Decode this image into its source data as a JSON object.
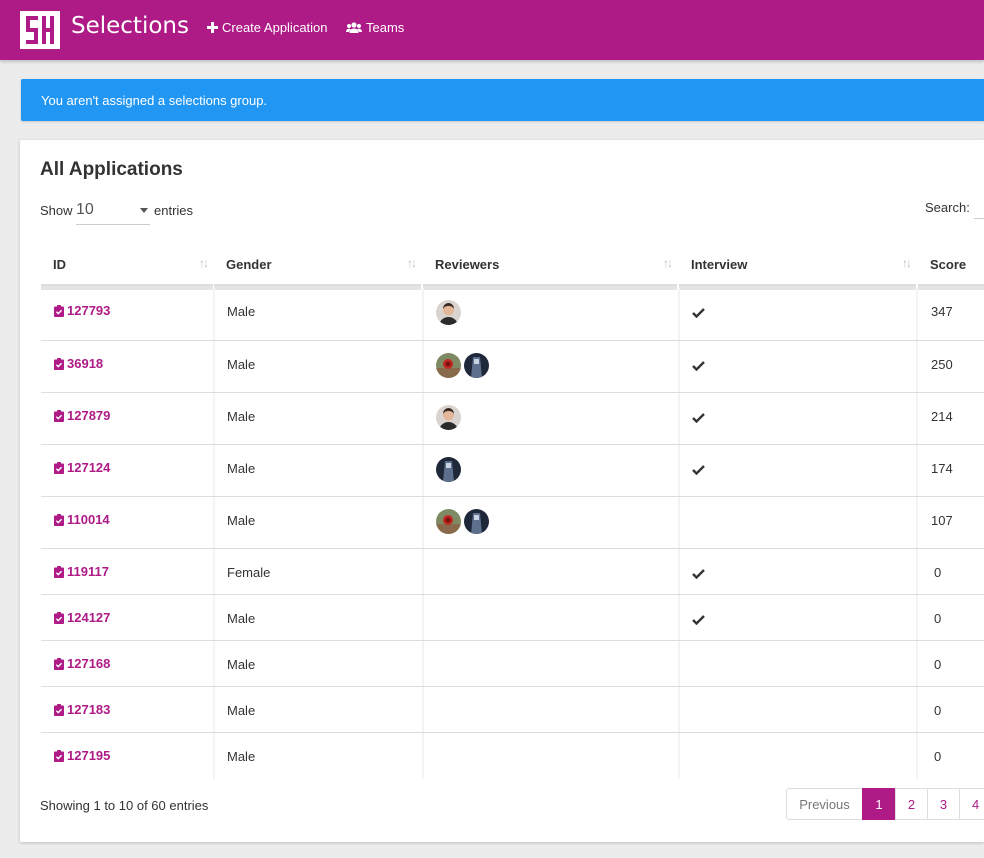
{
  "navbar": {
    "brand": "Selections",
    "links": [
      {
        "label": "Create Application",
        "icon": "plus-icon"
      },
      {
        "label": "Teams",
        "icon": "users-icon"
      }
    ],
    "color": "#ae1a86"
  },
  "alert": {
    "text": "You aren't assigned a selections group.",
    "color": "#2196f3"
  },
  "panel": {
    "title": "All Applications",
    "show_label": "Show",
    "page_length": "10",
    "entries_label": "entries",
    "search_label": "Search:",
    "search_value": ""
  },
  "table": {
    "columns": [
      "ID",
      "Gender",
      "Reviewers",
      "Interview",
      "Score"
    ],
    "rows": [
      {
        "id": "127793",
        "gender": "Male",
        "reviewers": [
          "avatar-male"
        ],
        "interview": true,
        "score": "347"
      },
      {
        "id": "36918",
        "gender": "Male",
        "reviewers": [
          "avatar-red",
          "avatar-dark"
        ],
        "interview": true,
        "score": "250"
      },
      {
        "id": "127879",
        "gender": "Male",
        "reviewers": [
          "avatar-male"
        ],
        "interview": true,
        "score": "214"
      },
      {
        "id": "127124",
        "gender": "Male",
        "reviewers": [
          "avatar-dark"
        ],
        "interview": true,
        "score": "174"
      },
      {
        "id": "110014",
        "gender": "Male",
        "reviewers": [
          "avatar-red",
          "avatar-dark"
        ],
        "interview": false,
        "score": "107"
      },
      {
        "id": "119117",
        "gender": "Female",
        "reviewers": [],
        "interview": true,
        "score": "0"
      },
      {
        "id": "124127",
        "gender": "Male",
        "reviewers": [],
        "interview": true,
        "score": "0"
      },
      {
        "id": "127168",
        "gender": "Male",
        "reviewers": [],
        "interview": false,
        "score": "0"
      },
      {
        "id": "127183",
        "gender": "Male",
        "reviewers": [],
        "interview": false,
        "score": "0"
      },
      {
        "id": "127195",
        "gender": "Male",
        "reviewers": [],
        "interview": false,
        "score": "0"
      }
    ]
  },
  "footer": {
    "info": "Showing 1 to 10 of 60 entries",
    "pagination": {
      "previous": "Previous",
      "pages": [
        "1",
        "2",
        "3",
        "4"
      ],
      "active": "1"
    }
  }
}
